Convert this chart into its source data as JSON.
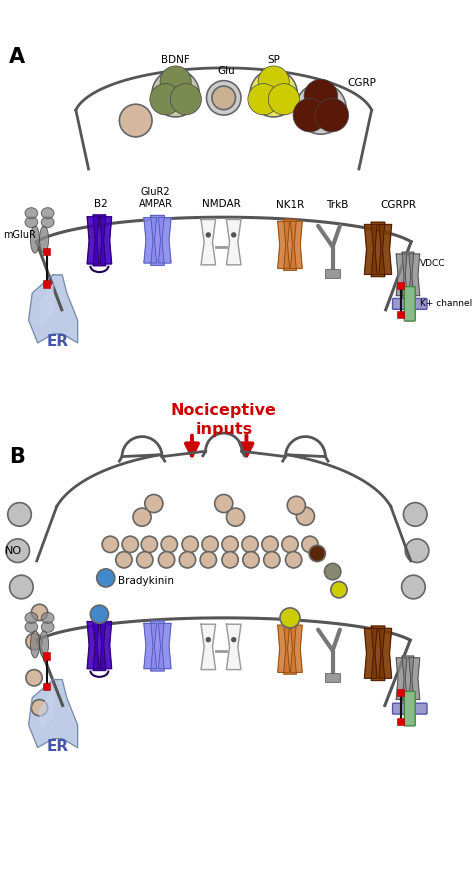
{
  "bg_color": "#ffffff",
  "panel_A_label": "A",
  "panel_B_label": "B",
  "nociceptive_text": "Nociceptive\ninputs",
  "ER_text": "ER",
  "NO_text": "NO",
  "bradykinin_text": "Bradykinin",
  "receptor_colors": {
    "mGluR": "#888888",
    "B2": "#4400bb",
    "AMPAR": "#8888ee",
    "NMDAR_fill": "#f5f5f5",
    "NMDAR_edge": "#999999",
    "NK1R": "#cc7733",
    "TrkB": "#888888",
    "CGRPR": "#7a3800",
    "VDCC": "#888888",
    "K_channel_blue": "#9999cc",
    "K_channel_green": "#88bb88"
  },
  "colors": {
    "membrane": "#555555",
    "pre_terminal": "#555555",
    "vesicle_plain": "#d4b8a0",
    "vesicle_BDNF_outer": "#c8c8b0",
    "vesicle_BDNF_inner": "#7a8a50",
    "vesicle_Glu_outer": "#cccccc",
    "vesicle_Glu_inner": "#c8b090",
    "vesicle_SP_outer": "#e8e860",
    "vesicle_SP_inner": "#cccc00",
    "vesicle_CGRP_outer": "#cccccc",
    "vesicle_CGRP_inner": "#5a1808",
    "ER_fill": "#aabbdd",
    "ER_fill2": "#c8d4ee",
    "arrow_red": "#cc0000",
    "red_sq": "#dd0000",
    "gray_sphere": "#c0c0c0",
    "bradykinin_blue": "#4488cc",
    "yellow_SP": "#dddd00",
    "olive_sphere": "#888870",
    "dark_brown": "#5a2808"
  }
}
